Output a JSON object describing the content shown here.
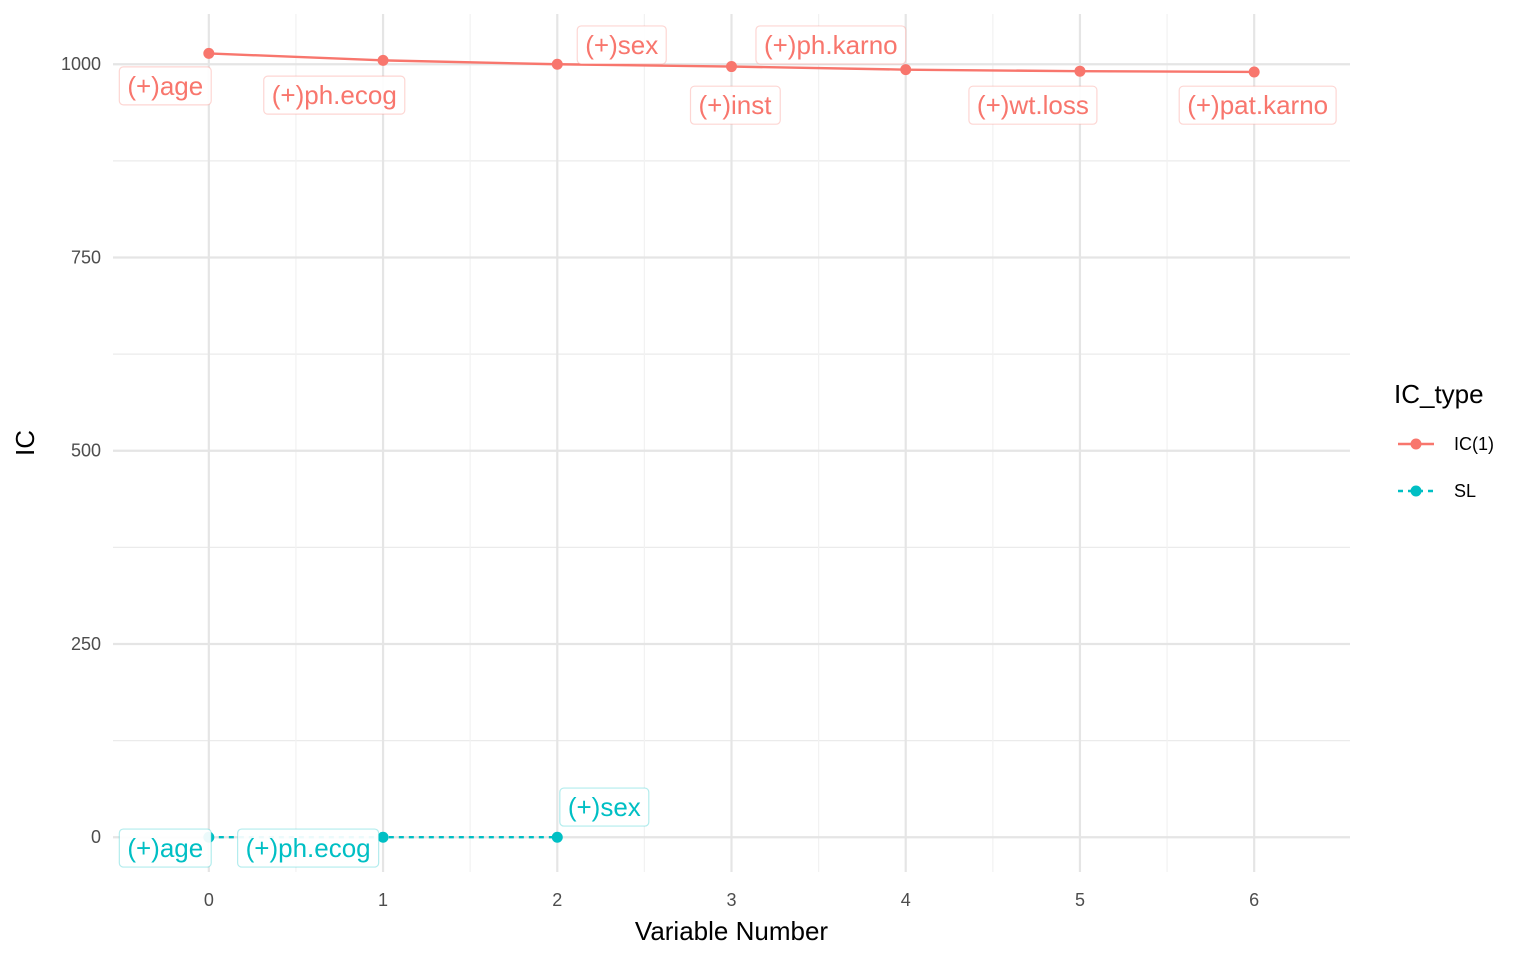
{
  "chart_data": {
    "type": "line",
    "title": "",
    "xlabel": "Variable Number",
    "ylabel": "IC",
    "x_ticks": [
      0,
      1,
      2,
      3,
      4,
      5,
      6
    ],
    "y_ticks": [
      0,
      250,
      500,
      750,
      1000
    ],
    "xlim": [
      -0.55,
      6.55
    ],
    "ylim": [
      -45,
      1065
    ],
    "grid": true,
    "legend": {
      "title": "IC_type",
      "placement": "right"
    },
    "series": [
      {
        "name": "IC(1)",
        "color": "#F8766D",
        "line_style": "solid",
        "x": [
          0,
          1,
          2,
          3,
          4,
          5,
          6
        ],
        "y": [
          1014,
          1005,
          1000,
          997,
          993,
          991,
          990
        ],
        "labels": [
          "(+)age",
          "(+)ph.ecog",
          "(+)sex",
          "(+)inst",
          "(+)ph.karno",
          "(+)wt.loss",
          "(+)pat.karno"
        ]
      },
      {
        "name": "SL",
        "color": "#00BFC4",
        "line_style": "dashed",
        "x": [
          0,
          1,
          2
        ],
        "y": [
          0,
          0,
          0
        ],
        "labels": [
          "(+)age",
          "(+)ph.ecog",
          "(+)sex"
        ]
      }
    ],
    "annotations": [
      {
        "series": 0,
        "text": "(+)age",
        "x": -0.25,
        "y": 972
      },
      {
        "series": 0,
        "text": "(+)ph.ecog",
        "x": 0.72,
        "y": 960
      },
      {
        "series": 0,
        "text": "(+)sex",
        "x": 2.37,
        "y": 1025
      },
      {
        "series": 0,
        "text": "(+)inst",
        "x": 3.02,
        "y": 947
      },
      {
        "series": 0,
        "text": "(+)ph.karno",
        "x": 3.57,
        "y": 1025
      },
      {
        "series": 0,
        "text": "(+)wt.loss",
        "x": 4.73,
        "y": 947
      },
      {
        "series": 0,
        "text": "(+)pat.karno",
        "x": 6.02,
        "y": 947
      },
      {
        "series": 1,
        "text": "(+)age",
        "x": -0.25,
        "y": -14
      },
      {
        "series": 1,
        "text": "(+)ph.ecog",
        "x": 0.57,
        "y": -14
      },
      {
        "series": 1,
        "text": "(+)sex",
        "x": 2.27,
        "y": 39
      }
    ]
  }
}
